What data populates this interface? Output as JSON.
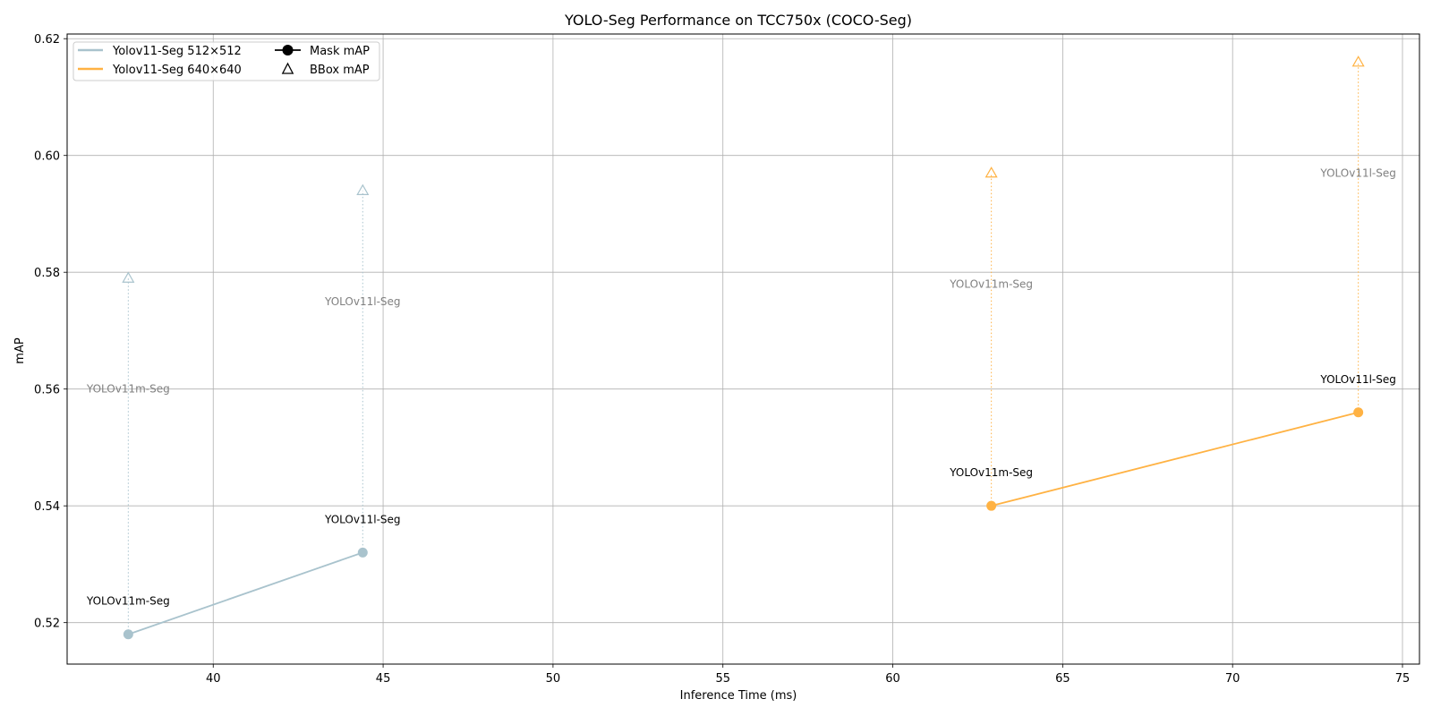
{
  "chart_data": {
    "type": "line",
    "title": "YOLO-Seg Performance on TCC750x (COCO-Seg)",
    "xlabel": "Inference Time (ms)",
    "ylabel": "mAP",
    "xlim": [
      35.7,
      75.5
    ],
    "ylim": [
      0.5129,
      0.6208
    ],
    "xticks": [
      40,
      45,
      50,
      55,
      60,
      65,
      70,
      75
    ],
    "yticks": [
      0.52,
      0.54,
      0.56,
      0.58,
      0.6,
      0.62
    ],
    "xtick_labels": [
      "40",
      "45",
      "50",
      "55",
      "60",
      "65",
      "70",
      "75"
    ],
    "ytick_labels": [
      "0.52",
      "0.54",
      "0.56",
      "0.58",
      "0.60",
      "0.62"
    ],
    "grid": true,
    "legend_position": "top-left",
    "legend": {
      "series_entries": [
        "Yolov11-Seg 512×512",
        "Yolov11-Seg 640×640"
      ],
      "marker_entries": [
        "Mask mAP",
        "BBox mAP"
      ]
    },
    "series": [
      {
        "name": "Yolov11-Seg 512×512",
        "color": "#a9c3cd",
        "points": [
          {
            "model": "YOLOv11m-Seg",
            "x": 37.5,
            "mask_map": 0.518,
            "bbox_map": 0.579
          },
          {
            "model": "YOLOv11l-Seg",
            "x": 44.4,
            "mask_map": 0.532,
            "bbox_map": 0.594
          }
        ]
      },
      {
        "name": "Yolov11-Seg 640×640",
        "color": "#ffb243",
        "points": [
          {
            "model": "YOLOv11m-Seg",
            "x": 62.9,
            "mask_map": 0.54,
            "bbox_map": 0.597
          },
          {
            "model": "YOLOv11l-Seg",
            "x": 73.7,
            "mask_map": 0.556,
            "bbox_map": 0.616
          }
        ]
      }
    ]
  }
}
